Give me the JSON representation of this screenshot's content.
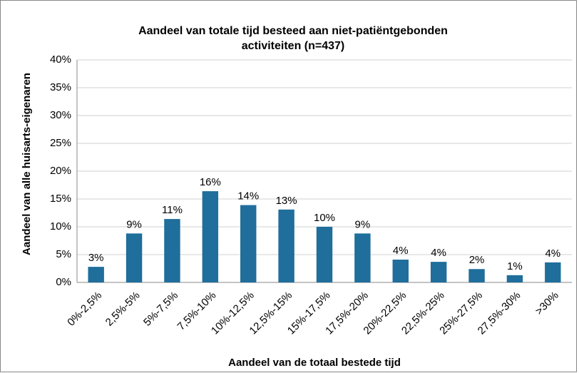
{
  "chart_data": {
    "type": "bar",
    "title": [
      "Aandeel van totale tijd besteed aan niet-patiëntgebonden",
      "activiteiten (n=437)"
    ],
    "x_label": "Aandeel van de totaal bestede tijd",
    "y_label": "Aandeel van alle huisarts-eigenaren",
    "categories": [
      "0%-2,5%",
      "2,5%-5%",
      "5%-7,5%",
      "7,5%-10%",
      "10%-12,5%",
      "12,5%-15%",
      "15%-17,5%",
      "17,5%-20%",
      "20%-22,5%",
      "22,5%-25%",
      "25%-27,5%",
      "27,5%-30%",
      ">30%"
    ],
    "values": [
      2.8,
      8.8,
      11.4,
      16.4,
      13.9,
      13.1,
      10.0,
      8.8,
      4.1,
      3.7,
      2.4,
      1.3,
      3.6
    ],
    "value_labels": [
      "3%",
      "9%",
      "11%",
      "16%",
      "14%",
      "13%",
      "10%",
      "9%",
      "4%",
      "4%",
      "2%",
      "1%",
      "4%"
    ],
    "color": "#1f6e9b",
    "ylim": [
      0,
      40
    ],
    "yticks": [
      {
        "value": 0,
        "label": "0%"
      },
      {
        "value": 5,
        "label": "5%"
      },
      {
        "value": 10,
        "label": "10%"
      },
      {
        "value": 15,
        "label": "15%"
      },
      {
        "value": 20,
        "label": "20%"
      },
      {
        "value": 25,
        "label": "25%"
      },
      {
        "value": 30,
        "label": "30%"
      },
      {
        "value": 35,
        "label": "35%"
      },
      {
        "value": 40,
        "label": "40%"
      }
    ],
    "grid": true
  }
}
